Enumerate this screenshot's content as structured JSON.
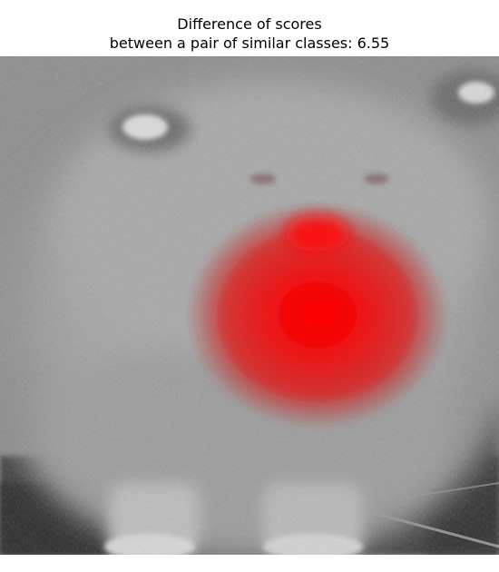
{
  "figure": {
    "title_line1": "Difference of scores",
    "title_line2": "between a pair of similar classes: 6.55"
  },
  "image": {
    "subject": "grayscale photo of a fluffy dog (face close-up) with a red saliency heatmap overlay",
    "heatmap_color": "#ff0000"
  }
}
